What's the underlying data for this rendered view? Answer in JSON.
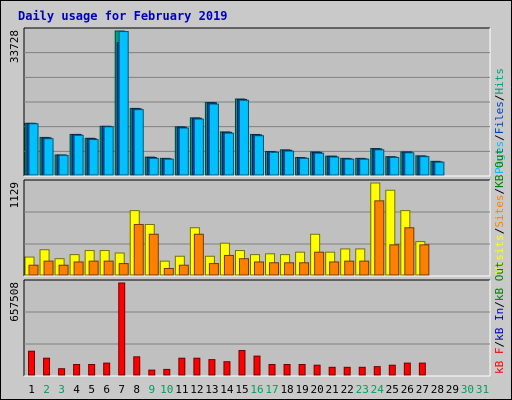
{
  "chart_data": {
    "type": "bar",
    "title": "Daily usage for February 2019",
    "categories": [
      "1",
      "2",
      "3",
      "4",
      "5",
      "6",
      "7",
      "8",
      "9",
      "10",
      "11",
      "12",
      "13",
      "14",
      "15",
      "16",
      "17",
      "18",
      "19",
      "20",
      "21",
      "22",
      "23",
      "24",
      "25",
      "26",
      "27",
      "28",
      "29",
      "30",
      "31"
    ],
    "weekend_days": [
      2,
      3,
      9,
      10,
      16,
      17,
      23,
      24,
      30,
      31
    ],
    "colors": {
      "background": "#c9c9c9",
      "plot_bg": "#c0c0c0",
      "title": "#0000c0",
      "pages": "#00c0ff",
      "files": "#0040c0",
      "hits": "#00a080",
      "visits": "#ffff00",
      "sites": "#ff8000",
      "kbin": "#0000c0",
      "kbout": "#008000",
      "kbf": "#ff0000",
      "weekend_label": "#00a060",
      "weekday_label": "#000000"
    },
    "panels": [
      {
        "id": "hits_files_pages",
        "ymax_label": "33728",
        "ymax": 33728,
        "legend": [
          "Pages",
          "/",
          "Files",
          "/",
          "Hits"
        ],
        "legend_colors": [
          "pages",
          "sep",
          "files",
          "sep",
          "hits"
        ],
        "series": [
          {
            "name": "Hits",
            "color": "hits",
            "values": [
              12100,
              8800,
              4700,
              9500,
              8600,
              11400,
              33728,
              15600,
              4200,
              3900,
              11300,
              13400,
              17000,
              10100,
              17800,
              9500,
              5500,
              5900,
              4100,
              5400,
              4400,
              3900,
              3900,
              6200,
              4300,
              5400,
              4500,
              3200,
              0,
              0,
              0
            ]
          },
          {
            "name": "Files",
            "color": "files",
            "values": [
              12100,
              8700,
              4700,
              9500,
              8500,
              11400,
              31000,
              15500,
              4100,
              3800,
              11200,
              13300,
              16900,
              10000,
              17700,
              9400,
              5400,
              5800,
              4000,
              5300,
              4400,
              3800,
              3800,
              6100,
              4200,
              5400,
              4400,
              3100,
              0,
              0,
              0
            ]
          },
          {
            "name": "Pages",
            "color": "pages",
            "values": [
              12000,
              8500,
              4600,
              9300,
              8300,
              11300,
              33600,
              15300,
              3900,
              3700,
              11000,
              13100,
              16600,
              9800,
              17500,
              9200,
              5300,
              5600,
              3900,
              5100,
              4200,
              3700,
              3700,
              5900,
              4100,
              5200,
              4300,
              3000,
              0,
              0,
              0
            ]
          }
        ]
      },
      {
        "id": "visits_sites",
        "ymax_label": "1129",
        "ymax": 1129,
        "legend": [
          "Visits",
          "/",
          "Sites",
          "/",
          "KB Out"
        ],
        "legend_colors": [
          "visits",
          "sep",
          "sites",
          "sep",
          "kbout"
        ],
        "series": [
          {
            "name": "Visits",
            "color": "visits",
            "values": [
              220,
              310,
              200,
              250,
              300,
              300,
              270,
              790,
              620,
              170,
              230,
              580,
              230,
              390,
              300,
              250,
              260,
              250,
              280,
              500,
              280,
              320,
              320,
              1129,
              1040,
              790,
              410,
              0,
              0,
              0,
              0
            ]
          },
          {
            "name": "Sites",
            "color": "sites",
            "values": [
              120,
              170,
              120,
              160,
              170,
              170,
              140,
              620,
              500,
              80,
              120,
              500,
              140,
              240,
              200,
              160,
              150,
              150,
              150,
              280,
              160,
              170,
              170,
              910,
              370,
              580,
              370,
              0,
              0,
              0,
              0
            ]
          }
        ]
      },
      {
        "id": "kbytes",
        "ymax_label": "657508",
        "ymax": 657508,
        "legend": [
          "kB F",
          "/",
          "kB In",
          "/",
          "kB Out"
        ],
        "legend_colors": [
          "kbf",
          "sep",
          "kbin",
          "sep",
          "kbout"
        ],
        "series": [
          {
            "name": "kB F",
            "color": "kbf",
            "values": [
              170000,
              120000,
              45000,
              75000,
              75000,
              85000,
              657508,
              130000,
              35000,
              40000,
              120000,
              120000,
              110000,
              95000,
              175000,
              135000,
              75000,
              75000,
              75000,
              70000,
              55000,
              55000,
              55000,
              60000,
              70000,
              85000,
              85000,
              0,
              0,
              0,
              0
            ]
          }
        ]
      }
    ]
  }
}
